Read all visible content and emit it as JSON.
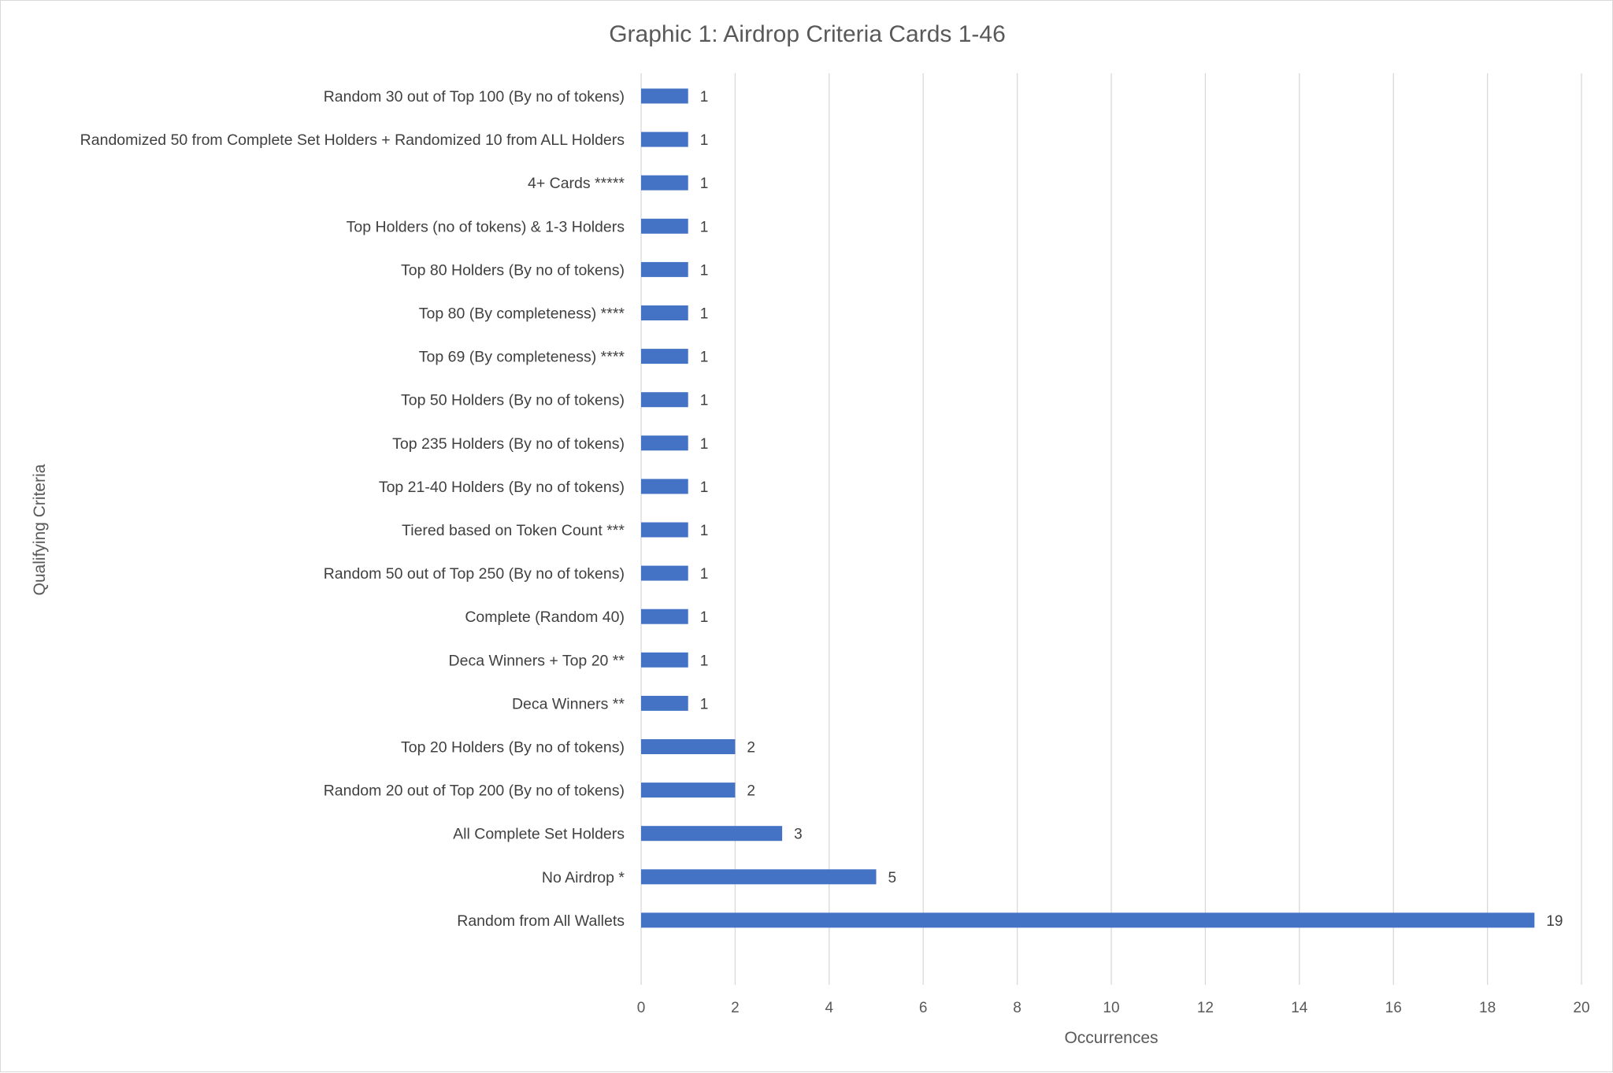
{
  "chart_data": {
    "type": "bar",
    "orientation": "horizontal",
    "title": "Graphic 1: Airdrop Criteria Cards 1-46",
    "xlabel": "Occurrences",
    "ylabel": "Qualifying Criteria",
    "xlim": [
      0,
      20
    ],
    "x_ticks": [
      "0",
      "2",
      "4",
      "6",
      "8",
      "10",
      "12",
      "14",
      "16",
      "18",
      "20"
    ],
    "grid": "vertical",
    "bar_color": "#4472C4",
    "categories": [
      "Random 30 out of Top 100 (By no of tokens)",
      "Randomized 50 from Complete Set Holders + Randomized 10 from ALL Holders",
      "4+ Cards *****",
      "Top Holders (no of tokens) & 1-3 Holders",
      "Top 80 Holders (By no of tokens)",
      "Top 80 (By completeness) ****",
      "Top 69 (By completeness) ****",
      "Top 50 Holders (By no of tokens)",
      "Top 235 Holders (By no of tokens)",
      "Top 21-40 Holders (By no of tokens)",
      "Tiered based on Token Count ***",
      "Random 50 out of Top 250 (By no of tokens)",
      "Complete (Random 40)",
      "Deca Winners + Top 20 **",
      "Deca Winners **",
      "Top 20 Holders (By no of tokens)",
      "Random 20 out of Top 200 (By no of tokens)",
      "All Complete Set Holders",
      "No Airdrop *",
      "Random from All Wallets"
    ],
    "values": [
      1,
      1,
      1,
      1,
      1,
      1,
      1,
      1,
      1,
      1,
      1,
      1,
      1,
      1,
      1,
      2,
      2,
      3,
      5,
      19
    ],
    "data_labels": [
      "1",
      "1",
      "1",
      "1",
      "1",
      "1",
      "1",
      "1",
      "1",
      "1",
      "1",
      "1",
      "1",
      "1",
      "1",
      "2",
      "2",
      "3",
      "5",
      "19"
    ]
  }
}
